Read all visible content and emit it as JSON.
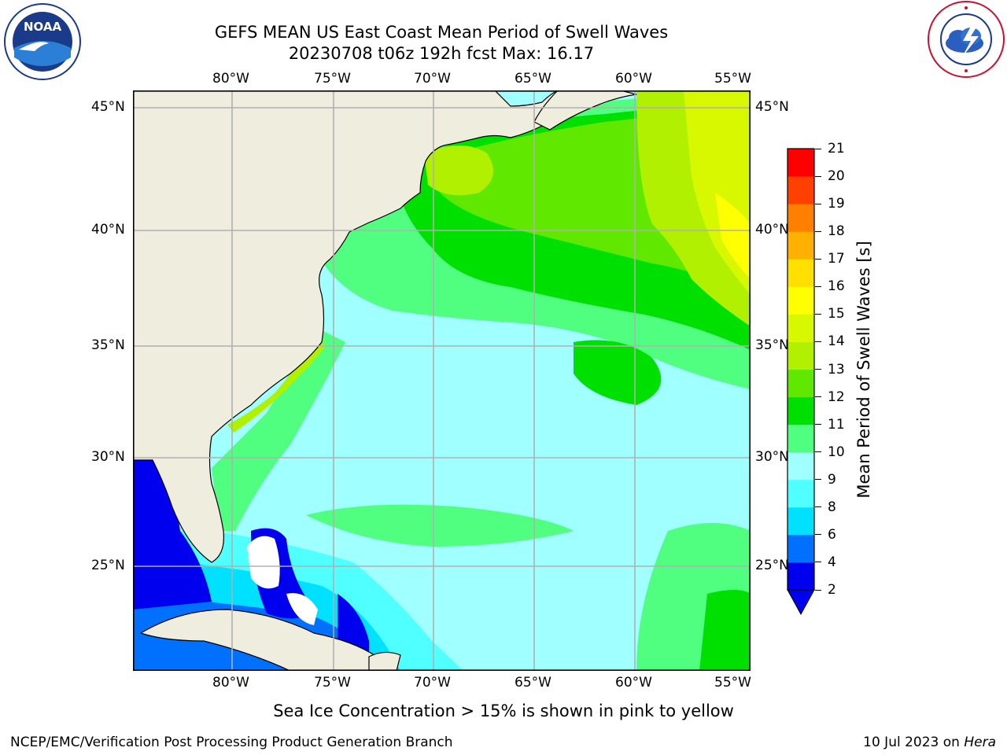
{
  "header": {
    "title_line1": "GEFS MEAN US East Coast Mean Period of Swell Waves",
    "title_line2": "20230708 t06z 192h fcst   Max: 16.17"
  },
  "logos": {
    "left": "noaa-logo",
    "right": "national-weather-service-logo"
  },
  "map": {
    "lon_labels": [
      "80°W",
      "75°W",
      "70°W",
      "65°W",
      "60°W",
      "55°W"
    ],
    "lat_labels": [
      "45°N",
      "40°N",
      "35°N",
      "30°N",
      "25°N"
    ],
    "land_color": "#efedde",
    "grid_color": "#b0b0b0"
  },
  "colorbar": {
    "label": "Mean Period of Swell Waves [s]",
    "ticks": [
      "2",
      "4",
      "6",
      "8",
      "9",
      "10",
      "11",
      "12",
      "13",
      "14",
      "15",
      "16",
      "17",
      "18",
      "19",
      "20",
      "21"
    ],
    "colors": [
      "#0000ee",
      "#0070ff",
      "#00e0ff",
      "#50ffff",
      "#a0ffff",
      "#50ff80",
      "#00e000",
      "#60e800",
      "#b0f000",
      "#d8f800",
      "#ffff00",
      "#ffe000",
      "#ffb000",
      "#ff8000",
      "#ff4000",
      "#ff0000"
    ]
  },
  "footer": {
    "note": "Sea Ice Concentration > 15% is shown in pink to yellow",
    "credit": "NCEP/EMC/Verification Post Processing Product Generation Branch",
    "date": "10 Jul 2023 on",
    "machine": "Hera"
  }
}
